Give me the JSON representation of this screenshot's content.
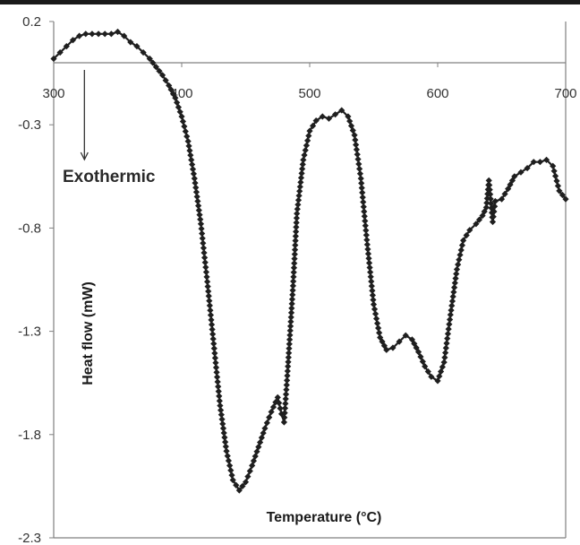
{
  "chart_data": {
    "type": "line",
    "title": "",
    "xlabel": "Temperature (°C)",
    "ylabel": "Heat flow (mW)",
    "xlim": [
      300,
      700
    ],
    "ylim": [
      -2.3,
      0.2
    ],
    "x_ticks": [
      "300",
      "400",
      "500",
      "600",
      "700"
    ],
    "y_ticks": [
      "0.2",
      "-0.3",
      "-0.8",
      "-1.3",
      "-1.8",
      "-2.3"
    ],
    "grid": false,
    "legend": "none",
    "annotation": {
      "label": "Exothermic",
      "arrow": "down",
      "x": 324,
      "y_from": 0.05,
      "y_to": -0.45
    },
    "colors": {
      "series": "#1f1f1f",
      "axis": "#808080"
    },
    "series": [
      {
        "name": "",
        "marker": "diamond",
        "x": [
          300,
          305,
          310,
          315,
          320,
          325,
          330,
          335,
          340,
          345,
          350,
          355,
          360,
          365,
          370,
          375,
          380,
          385,
          390,
          395,
          400,
          405,
          410,
          415,
          420,
          425,
          430,
          435,
          440,
          445,
          450,
          455,
          460,
          465,
          470,
          475,
          478,
          480,
          483,
          487,
          490,
          495,
          500,
          505,
          510,
          515,
          520,
          525,
          530,
          535,
          540,
          545,
          550,
          555,
          560,
          565,
          570,
          575,
          580,
          585,
          590,
          595,
          600,
          605,
          610,
          615,
          620,
          625,
          630,
          635,
          638,
          640,
          643,
          645,
          650,
          655,
          660,
          665,
          670,
          675,
          680,
          685,
          690,
          695,
          700
        ],
        "y": [
          0.02,
          0.05,
          0.08,
          0.11,
          0.13,
          0.14,
          0.14,
          0.14,
          0.14,
          0.14,
          0.15,
          0.13,
          0.1,
          0.08,
          0.05,
          0.02,
          -0.02,
          -0.06,
          -0.11,
          -0.17,
          -0.26,
          -0.38,
          -0.56,
          -0.78,
          -1.06,
          -1.36,
          -1.66,
          -1.88,
          -2.02,
          -2.07,
          -2.03,
          -1.95,
          -1.86,
          -1.77,
          -1.69,
          -1.62,
          -1.7,
          -1.74,
          -1.47,
          -1.08,
          -0.73,
          -0.47,
          -0.33,
          -0.28,
          -0.26,
          -0.27,
          -0.25,
          -0.23,
          -0.26,
          -0.35,
          -0.56,
          -0.88,
          -1.17,
          -1.33,
          -1.39,
          -1.38,
          -1.35,
          -1.32,
          -1.34,
          -1.4,
          -1.47,
          -1.52,
          -1.54,
          -1.45,
          -1.22,
          -1.0,
          -0.86,
          -0.81,
          -0.78,
          -0.74,
          -0.7,
          -0.57,
          -0.77,
          -0.67,
          -0.66,
          -0.61,
          -0.55,
          -0.53,
          -0.51,
          -0.48,
          -0.48,
          -0.47,
          -0.5,
          -0.62,
          -0.66
        ]
      }
    ]
  }
}
